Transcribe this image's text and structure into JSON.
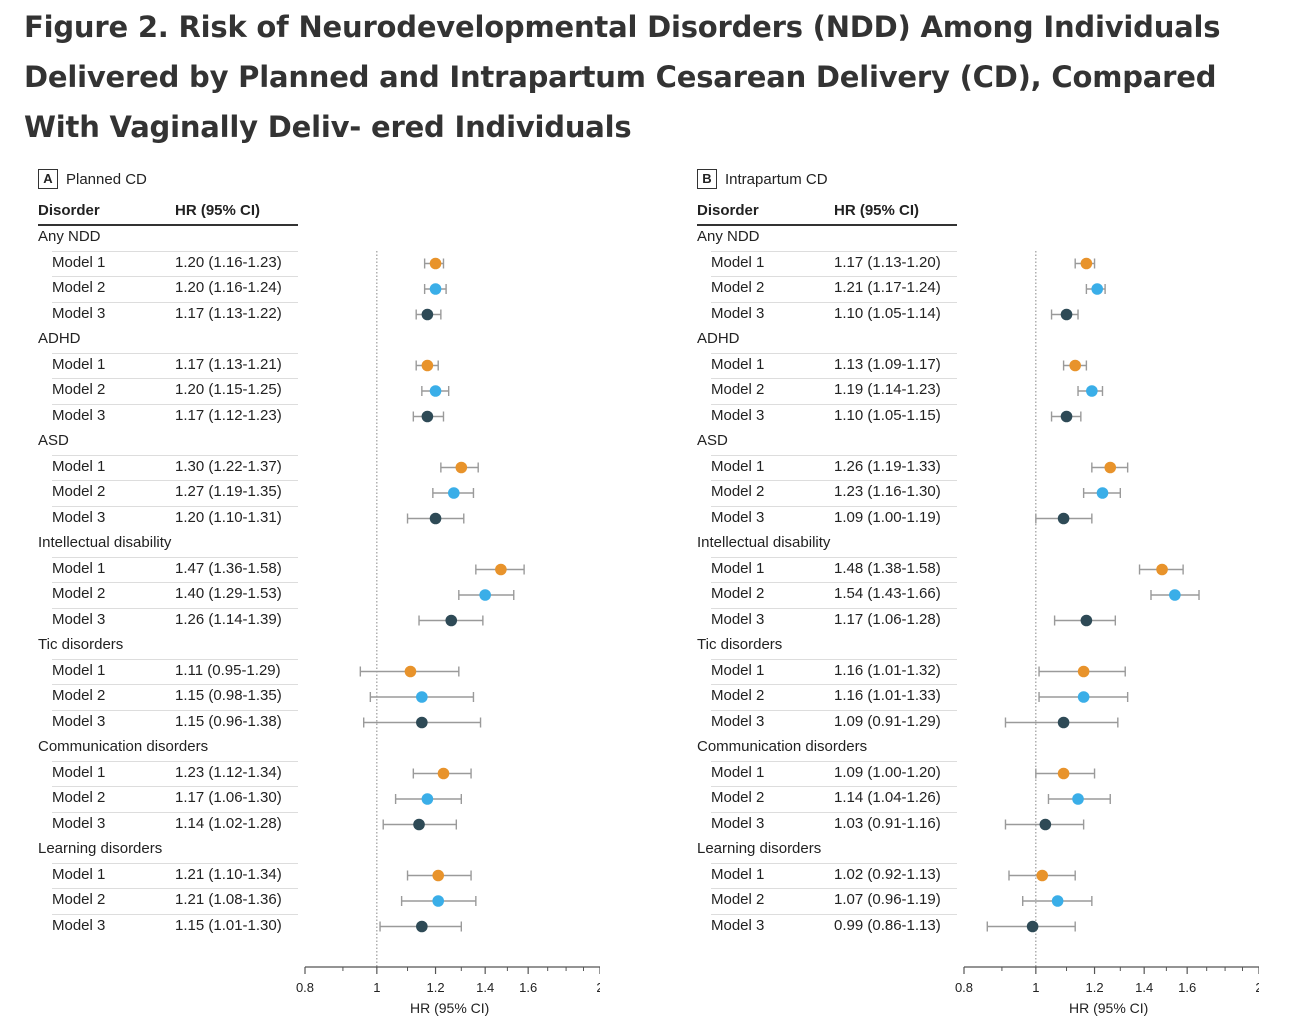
{
  "figure": {
    "title": "Figure 2.  Risk of Neurodevelopmental Disorders (NDD) Among Individuals Delivered by Planned and Intrapartum Cesarean Delivery (CD), Compared With Vaginally Deliv- ered Individuals"
  },
  "colors": {
    "model1": "#E8932B",
    "model2": "#3AAEE8",
    "model3": "#2E4A56",
    "ci_line": "#9a9a9a",
    "reference_line": "#888888"
  },
  "chart_data": [
    {
      "type": "forest",
      "panel": "A",
      "title": "Planned CD",
      "col_disorder": "Disorder",
      "col_hr": "HR (95% CI)",
      "xlabel": "HR (95% CI)",
      "xscale": "log",
      "xlim": [
        0.8,
        2
      ],
      "xticks": [
        "0.8",
        "1",
        "1.2",
        "1.4",
        "1.6",
        "2"
      ],
      "reference": 1,
      "groups": [
        {
          "name": "Any NDD",
          "rows": [
            {
              "model": "Model 1",
              "text": "1.20 (1.16-1.23)",
              "hr": 1.2,
              "lo": 1.16,
              "hi": 1.23
            },
            {
              "model": "Model 2",
              "text": "1.20 (1.16-1.24)",
              "hr": 1.2,
              "lo": 1.16,
              "hi": 1.24
            },
            {
              "model": "Model 3",
              "text": "1.17 (1.13-1.22)",
              "hr": 1.17,
              "lo": 1.13,
              "hi": 1.22
            }
          ]
        },
        {
          "name": "ADHD",
          "rows": [
            {
              "model": "Model 1",
              "text": "1.17 (1.13-1.21)",
              "hr": 1.17,
              "lo": 1.13,
              "hi": 1.21
            },
            {
              "model": "Model 2",
              "text": "1.20 (1.15-1.25)",
              "hr": 1.2,
              "lo": 1.15,
              "hi": 1.25
            },
            {
              "model": "Model 3",
              "text": "1.17 (1.12-1.23)",
              "hr": 1.17,
              "lo": 1.12,
              "hi": 1.23
            }
          ]
        },
        {
          "name": "ASD",
          "rows": [
            {
              "model": "Model 1",
              "text": "1.30 (1.22-1.37)",
              "hr": 1.3,
              "lo": 1.22,
              "hi": 1.37
            },
            {
              "model": "Model 2",
              "text": "1.27 (1.19-1.35)",
              "hr": 1.27,
              "lo": 1.19,
              "hi": 1.35
            },
            {
              "model": "Model 3",
              "text": "1.20 (1.10-1.31)",
              "hr": 1.2,
              "lo": 1.1,
              "hi": 1.31
            }
          ]
        },
        {
          "name": "Intellectual disability",
          "rows": [
            {
              "model": "Model 1",
              "text": "1.47 (1.36-1.58)",
              "hr": 1.47,
              "lo": 1.36,
              "hi": 1.58
            },
            {
              "model": "Model 2",
              "text": "1.40 (1.29-1.53)",
              "hr": 1.4,
              "lo": 1.29,
              "hi": 1.53
            },
            {
              "model": "Model 3",
              "text": "1.26 (1.14-1.39)",
              "hr": 1.26,
              "lo": 1.14,
              "hi": 1.39
            }
          ]
        },
        {
          "name": "Tic disorders",
          "rows": [
            {
              "model": "Model 1",
              "text": "1.11 (0.95-1.29)",
              "hr": 1.11,
              "lo": 0.95,
              "hi": 1.29
            },
            {
              "model": "Model 2",
              "text": "1.15 (0.98-1.35)",
              "hr": 1.15,
              "lo": 0.98,
              "hi": 1.35
            },
            {
              "model": "Model 3",
              "text": "1.15 (0.96-1.38)",
              "hr": 1.15,
              "lo": 0.96,
              "hi": 1.38
            }
          ]
        },
        {
          "name": "Communication disorders",
          "rows": [
            {
              "model": "Model 1",
              "text": "1.23 (1.12-1.34)",
              "hr": 1.23,
              "lo": 1.12,
              "hi": 1.34
            },
            {
              "model": "Model 2",
              "text": "1.17 (1.06-1.30)",
              "hr": 1.17,
              "lo": 1.06,
              "hi": 1.3
            },
            {
              "model": "Model 3",
              "text": "1.14 (1.02-1.28)",
              "hr": 1.14,
              "lo": 1.02,
              "hi": 1.28
            }
          ]
        },
        {
          "name": "Learning disorders",
          "rows": [
            {
              "model": "Model 1",
              "text": "1.21 (1.10-1.34)",
              "hr": 1.21,
              "lo": 1.1,
              "hi": 1.34
            },
            {
              "model": "Model 2",
              "text": "1.21 (1.08-1.36)",
              "hr": 1.21,
              "lo": 1.08,
              "hi": 1.36
            },
            {
              "model": "Model 3",
              "text": "1.15 (1.01-1.30)",
              "hr": 1.15,
              "lo": 1.01,
              "hi": 1.3
            }
          ]
        }
      ]
    },
    {
      "type": "forest",
      "panel": "B",
      "title": "Intrapartum CD",
      "col_disorder": "Disorder",
      "col_hr": "HR (95% CI)",
      "xlabel": "HR (95% CI)",
      "xscale": "log",
      "xlim": [
        0.8,
        2
      ],
      "xticks": [
        "0.8",
        "1",
        "1.2",
        "1.4",
        "1.6",
        "2"
      ],
      "reference": 1,
      "groups": [
        {
          "name": "Any NDD",
          "rows": [
            {
              "model": "Model 1",
              "text": "1.17 (1.13-1.20)",
              "hr": 1.17,
              "lo": 1.13,
              "hi": 1.2
            },
            {
              "model": "Model 2",
              "text": "1.21 (1.17-1.24)",
              "hr": 1.21,
              "lo": 1.17,
              "hi": 1.24
            },
            {
              "model": "Model 3",
              "text": "1.10 (1.05-1.14)",
              "hr": 1.1,
              "lo": 1.05,
              "hi": 1.14
            }
          ]
        },
        {
          "name": "ADHD",
          "rows": [
            {
              "model": "Model 1",
              "text": "1.13 (1.09-1.17)",
              "hr": 1.13,
              "lo": 1.09,
              "hi": 1.17
            },
            {
              "model": "Model 2",
              "text": "1.19 (1.14-1.23)",
              "hr": 1.19,
              "lo": 1.14,
              "hi": 1.23
            },
            {
              "model": "Model 3",
              "text": "1.10 (1.05-1.15)",
              "hr": 1.1,
              "lo": 1.05,
              "hi": 1.15
            }
          ]
        },
        {
          "name": "ASD",
          "rows": [
            {
              "model": "Model 1",
              "text": "1.26 (1.19-1.33)",
              "hr": 1.26,
              "lo": 1.19,
              "hi": 1.33
            },
            {
              "model": "Model 2",
              "text": "1.23 (1.16-1.30)",
              "hr": 1.23,
              "lo": 1.16,
              "hi": 1.3
            },
            {
              "model": "Model 3",
              "text": "1.09 (1.00-1.19)",
              "hr": 1.09,
              "lo": 1.0,
              "hi": 1.19
            }
          ]
        },
        {
          "name": "Intellectual disability",
          "rows": [
            {
              "model": "Model 1",
              "text": "1.48 (1.38-1.58)",
              "hr": 1.48,
              "lo": 1.38,
              "hi": 1.58
            },
            {
              "model": "Model 2",
              "text": "1.54 (1.43-1.66)",
              "hr": 1.54,
              "lo": 1.43,
              "hi": 1.66
            },
            {
              "model": "Model 3",
              "text": "1.17 (1.06-1.28)",
              "hr": 1.17,
              "lo": 1.06,
              "hi": 1.28
            }
          ]
        },
        {
          "name": "Tic disorders",
          "rows": [
            {
              "model": "Model 1",
              "text": "1.16 (1.01-1.32)",
              "hr": 1.16,
              "lo": 1.01,
              "hi": 1.32
            },
            {
              "model": "Model 2",
              "text": "1.16 (1.01-1.33)",
              "hr": 1.16,
              "lo": 1.01,
              "hi": 1.33
            },
            {
              "model": "Model 3",
              "text": "1.09 (0.91-1.29)",
              "hr": 1.09,
              "lo": 0.91,
              "hi": 1.29
            }
          ]
        },
        {
          "name": "Communication disorders",
          "rows": [
            {
              "model": "Model 1",
              "text": "1.09 (1.00-1.20)",
              "hr": 1.09,
              "lo": 1.0,
              "hi": 1.2
            },
            {
              "model": "Model 2",
              "text": "1.14 (1.04-1.26)",
              "hr": 1.14,
              "lo": 1.04,
              "hi": 1.26
            },
            {
              "model": "Model 3",
              "text": "1.03 (0.91-1.16)",
              "hr": 1.03,
              "lo": 0.91,
              "hi": 1.16
            }
          ]
        },
        {
          "name": "Learning disorders",
          "rows": [
            {
              "model": "Model 1",
              "text": "1.02 (0.92-1.13)",
              "hr": 1.02,
              "lo": 0.92,
              "hi": 1.13
            },
            {
              "model": "Model 2",
              "text": "1.07 (0.96-1.19)",
              "hr": 1.07,
              "lo": 0.96,
              "hi": 1.19
            },
            {
              "model": "Model 3",
              "text": "0.99 (0.86-1.13)",
              "hr": 0.99,
              "lo": 0.86,
              "hi": 1.13
            }
          ]
        }
      ]
    }
  ]
}
